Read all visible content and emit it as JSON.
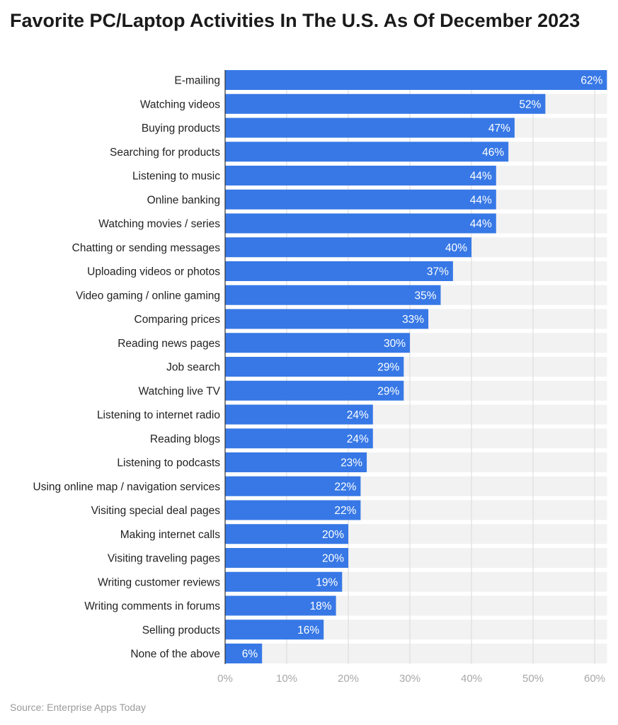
{
  "chart_data": {
    "type": "bar",
    "orientation": "horizontal",
    "title": "Favorite PC/Laptop Activities In The U.S. As Of December 2023",
    "categories": [
      "E-mailing",
      "Watching videos",
      "Buying products",
      "Searching for products",
      "Listening to music",
      "Online banking",
      "Watching movies / series",
      "Chatting or sending messages",
      "Uploading videos or photos",
      "Video gaming / online gaming",
      "Comparing prices",
      "Reading news pages",
      "Job search",
      "Watching live TV",
      "Listening to internet radio",
      "Reading blogs",
      "Listening to podcasts",
      "Using online map / navigation services",
      "Visiting special deal pages",
      "Making internet calls",
      "Visiting traveling pages",
      "Writing customer reviews",
      "Writing comments in forums",
      "Selling products",
      "None of the above"
    ],
    "values": [
      62,
      52,
      47,
      46,
      44,
      44,
      44,
      40,
      37,
      35,
      33,
      30,
      29,
      29,
      24,
      24,
      23,
      22,
      22,
      20,
      20,
      19,
      18,
      16,
      6
    ],
    "data_labels": [
      "62%",
      "52%",
      "47%",
      "46%",
      "44%",
      "44%",
      "44%",
      "40%",
      "37%",
      "35%",
      "33%",
      "30%",
      "29%",
      "29%",
      "24%",
      "24%",
      "23%",
      "22%",
      "22%",
      "20%",
      "20%",
      "19%",
      "18%",
      "16%",
      "6%"
    ],
    "xlim": [
      0,
      62
    ],
    "x_ticks": [
      0,
      10,
      20,
      30,
      40,
      50,
      60
    ],
    "x_tick_labels": [
      "0%",
      "10%",
      "20%",
      "30%",
      "40%",
      "50%",
      "60%"
    ],
    "xlabel": "",
    "ylabel": "",
    "grid": true,
    "legend": "none",
    "colors": {
      "bar": "#3778e6",
      "band": "#f2f2f2",
      "grid": "#dadada",
      "axis": "#333333"
    }
  },
  "source": "Source: Enterprise Apps Today"
}
